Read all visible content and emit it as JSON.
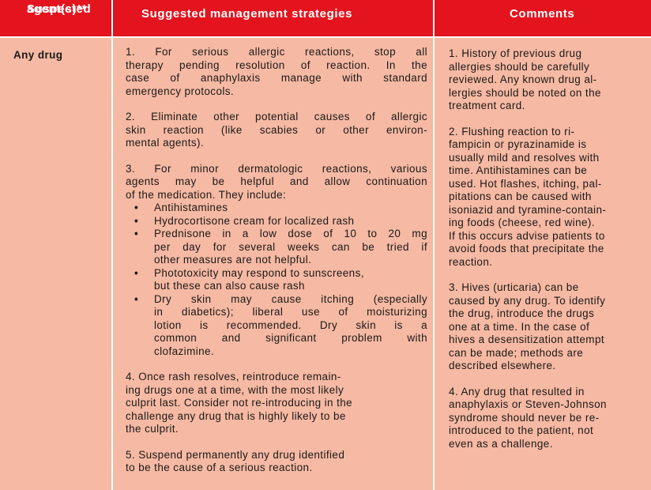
{
  "header": {
    "col1": "Suspected agent(s)**",
    "col1_line1": "Suspected",
    "col1_line2": "agent(s)**",
    "col2": "Suggested management strategies",
    "col3": "Comments"
  },
  "colors": {
    "header_bg": "#e3141e",
    "body_bg": "#f6b9a3",
    "header_text": "#ffffff"
  },
  "agent": "Any drug",
  "strategies": {
    "p1": [
      "1. For serious allergic reactions, stop all",
      "therapy pending resolution of reaction. In the",
      "case of anaphylaxis manage with standard",
      "emergency protocols."
    ],
    "p2": [
      "2. Eliminate other potential causes of allergic",
      "skin reaction (like scabies or other environ-",
      "mental agents)."
    ],
    "p3": [
      "3. For minor dermatologic  reactions, various",
      "agents may be helpful and allow continuation",
      "of the medication. They include:"
    ],
    "bullets": [
      [
        "Antihistamines"
      ],
      [
        "Hydrocortisone cream for localized rash"
      ],
      [
        "Prednisone in a low dose of 10 to 20 mg",
        "per day for several weeks can be tried if",
        "other measures are not helpful."
      ],
      [
        "Phototoxicity may respond to sunscreens,",
        "but these can also cause rash"
      ],
      [
        "Dry skin may cause itching (especially",
        "in diabetics); liberal use of moisturizing",
        "lotion is recommended.  Dry skin is a",
        "common and significant problem with",
        "clofazimine."
      ]
    ],
    "p4": [
      "4. Once rash resolves, reintroduce remain-",
      "ing drugs one at a time, with the most likely",
      "culprit last. Consider not re-introducing in the",
      "challenge any drug that is highly likely to be",
      "the culprit."
    ],
    "p5": [
      "5. Suspend permanently any drug identified",
      "to be the cause of a serious reaction."
    ]
  },
  "comments": {
    "c1": [
      "1. History of previous drug",
      "allergies should be carefully",
      "reviewed.  Any known drug al-",
      "lergies should be noted on the",
      "treatment card."
    ],
    "c2": [
      "2. Flushing reaction to ri-",
      "fampicin or pyrazinamide is",
      "usually mild and resolves with",
      "time.  Antihistamines can be",
      "used. Hot flashes, itching, pal-",
      "pitations can be caused with",
      "isoniazid and tyramine-contain-",
      "ing foods (cheese, red wine).",
      "If this occurs advise patients to",
      "avoid foods that precipitate the",
      "reaction."
    ],
    "c3": [
      "3. Hives (urticaria) can be",
      "caused by any drug. To identify",
      "the drug, introduce the drugs",
      "one at a time. In the case of",
      "hives a desensitization attempt",
      "can be made; methods are",
      "described  elsewhere."
    ],
    "c4": [
      "4. Any drug that resulted in",
      "anaphylaxis or Steven-Johnson",
      "syndrome should never be re-",
      "introduced to the patient, not",
      "even as a challenge."
    ]
  }
}
